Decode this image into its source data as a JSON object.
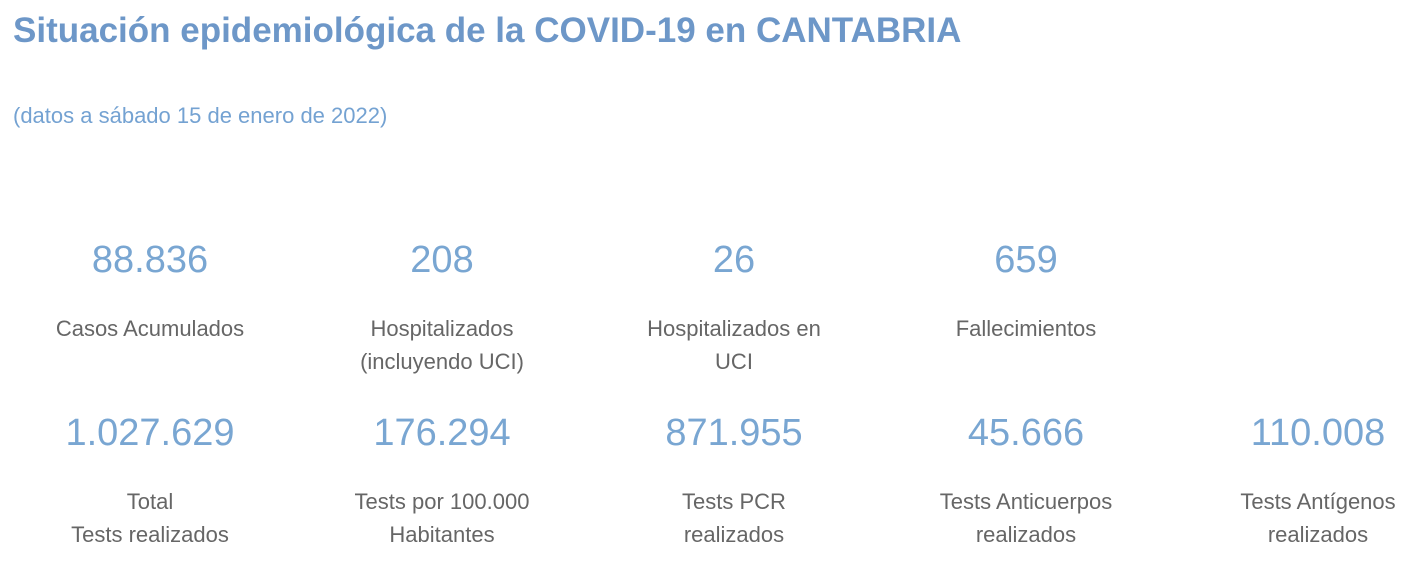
{
  "header": {
    "title": "Situación epidemiológica de la COVID-19 en CANTABRIA",
    "date_note": "(datos a sábado 15 de enero de 2022)"
  },
  "colors": {
    "title_blue": "#6D97C8",
    "date_blue": "#74A2D2",
    "value_blue": "#79A6D2",
    "label_gray": "#666666",
    "background": "#FFFFFF"
  },
  "stats": {
    "row1": [
      {
        "value": "88.836",
        "label": "Casos Acumulados"
      },
      {
        "value": "208",
        "label": "Hospitalizados\n(incluyendo UCI)"
      },
      {
        "value": "26",
        "label": "Hospitalizados en\nUCI"
      },
      {
        "value": "659",
        "label": "Fallecimientos"
      }
    ],
    "row2": [
      {
        "value": "1.027.629",
        "label": "Total\nTests realizados"
      },
      {
        "value": "176.294",
        "label": "Tests por 100.000\nHabitantes"
      },
      {
        "value": "871.955",
        "label": "Tests PCR\nrealizados"
      },
      {
        "value": "45.666",
        "label": "Tests Anticuerpos\nrealizados"
      },
      {
        "value": "110.008",
        "label": "Tests Antígenos\nrealizados"
      }
    ]
  }
}
